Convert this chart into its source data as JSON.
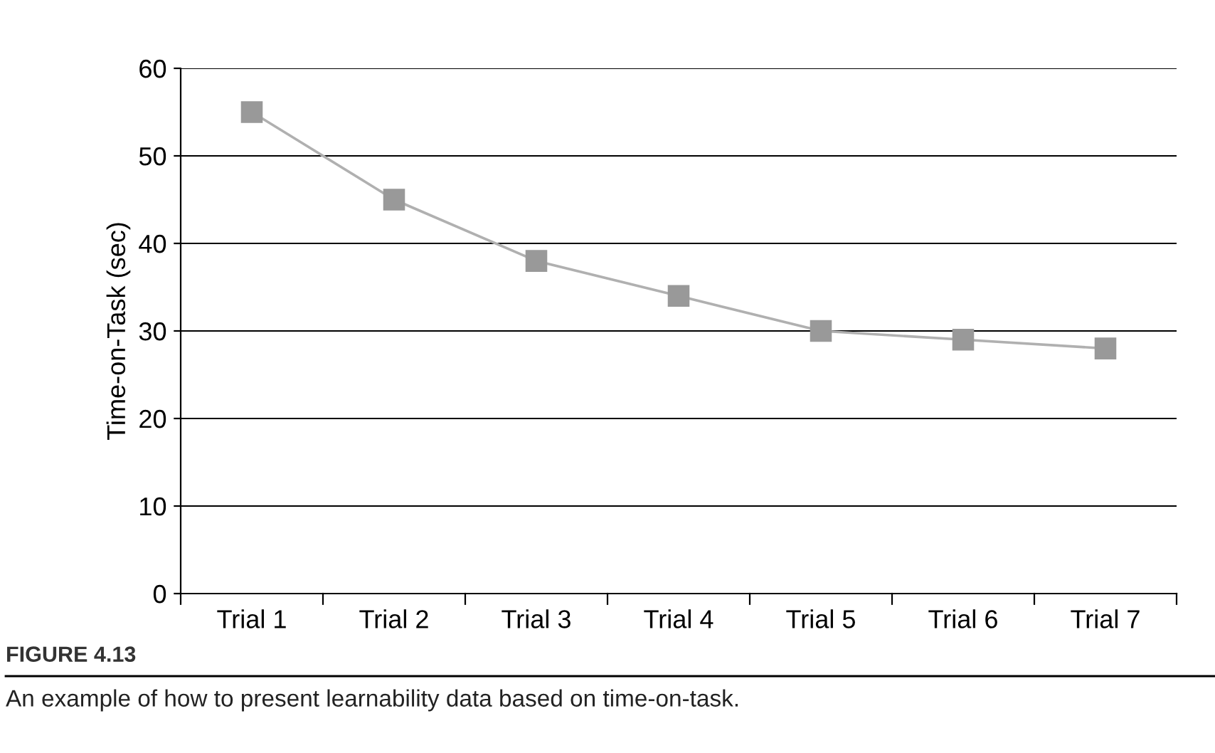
{
  "chart_data": {
    "type": "line",
    "ylabel": "Time-on-Task (sec)",
    "categories": [
      "Trial 1",
      "Trial 2",
      "Trial 3",
      "Trial 4",
      "Trial 5",
      "Trial 6",
      "Trial 7"
    ],
    "series": [
      {
        "color": "#999999",
        "values": [
          55,
          45,
          38,
          34,
          30,
          29,
          28
        ]
      }
    ],
    "ylim": [
      0,
      60
    ],
    "yticks": [
      0,
      10,
      20,
      30,
      40,
      50,
      60
    ],
    "grid": "y",
    "marker": "square",
    "line_style": "solid",
    "annotations": [
      "FIGURE 4.13",
      "An example of how to present learnability data based on time-on-task."
    ]
  }
}
